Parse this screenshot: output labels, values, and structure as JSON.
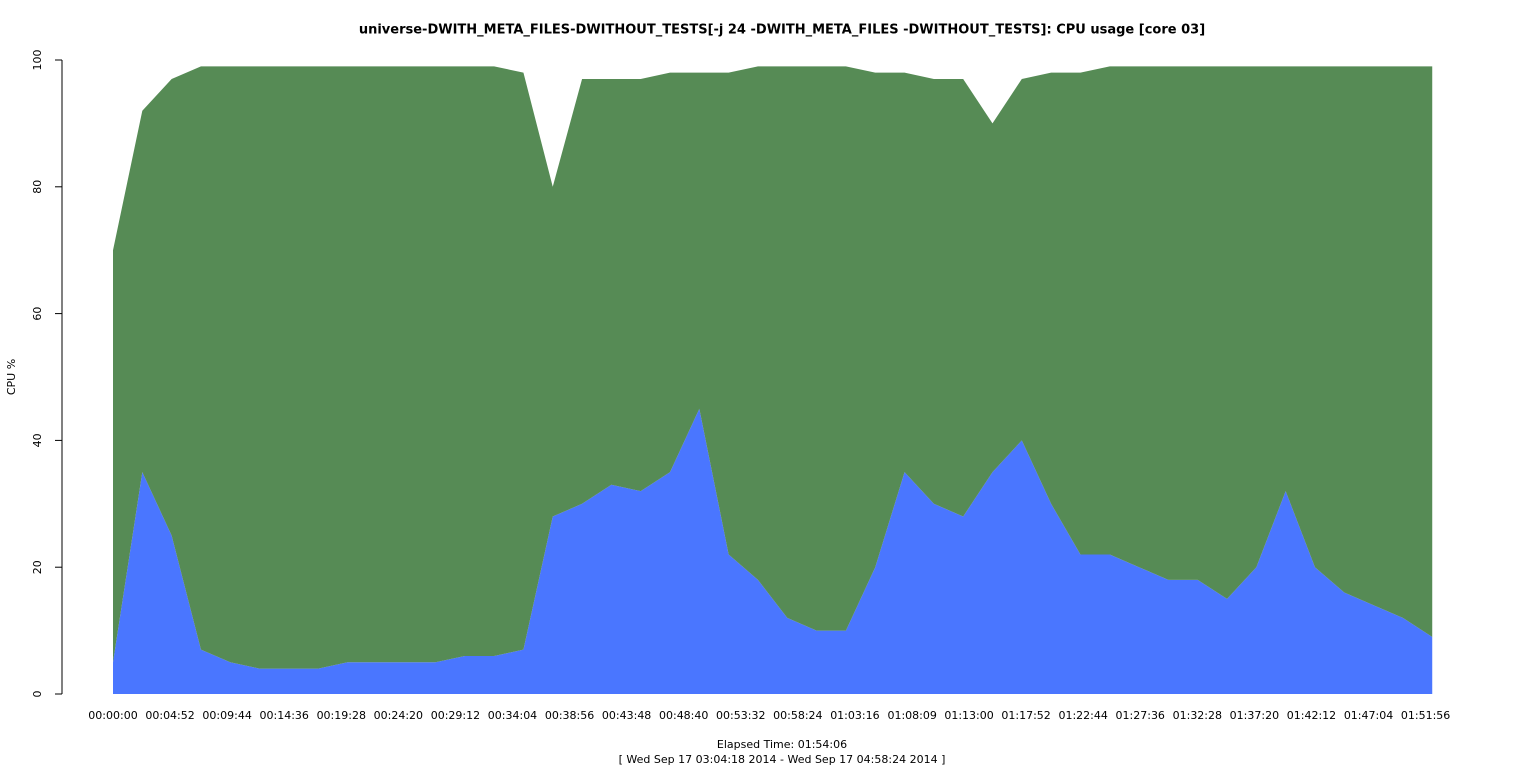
{
  "chart_data": {
    "type": "stacked-area",
    "title": "universe-DWITH_META_FILES-DWITHOUT_TESTS[-j 24 -DWITH_META_FILES -DWITHOUT_TESTS]: CPU usage [core 03]",
    "ylabel": "CPU %",
    "xlabel": "Elapsed Time: 01:54:06",
    "subtitle": "[ Wed Sep 17 03:04:18 2014 - Wed Sep 17 04:58:24 2014 ]",
    "x": [
      0,
      150,
      300,
      450,
      600,
      750,
      900,
      1050,
      1200,
      1350,
      1500,
      1650,
      1800,
      1950,
      2100,
      2250,
      2400,
      2550,
      2700,
      2850,
      3000,
      3150,
      3300,
      3450,
      3600,
      3750,
      3900,
      4050,
      4200,
      4350,
      4500,
      4650,
      4800,
      4950,
      5100,
      5250,
      5400,
      5550,
      5700,
      5850,
      6000,
      6150,
      6300,
      6450,
      6600,
      6750
    ],
    "series": [
      {
        "color": "#4a76ff",
        "values": [
          5,
          35,
          25,
          7,
          5,
          4,
          4,
          4,
          5,
          5,
          5,
          5,
          6,
          6,
          7,
          28,
          30,
          33,
          32,
          35,
          45,
          22,
          18,
          12,
          10,
          10,
          20,
          35,
          30,
          28,
          35,
          40,
          30,
          22,
          22,
          20,
          18,
          18,
          15,
          20,
          32,
          20,
          16,
          14,
          12,
          9
        ]
      },
      {
        "color": "#568b55",
        "values": [
          65,
          57,
          72,
          92,
          94,
          95,
          95,
          95,
          94,
          94,
          94,
          94,
          93,
          93,
          91,
          52,
          67,
          64,
          65,
          63,
          53,
          76,
          81,
          87,
          89,
          89,
          78,
          63,
          67,
          69,
          55,
          57,
          68,
          76,
          77,
          79,
          81,
          81,
          84,
          79,
          67,
          79,
          83,
          85,
          87,
          90
        ]
      }
    ],
    "xlim": [
      0,
      6846
    ],
    "xticks": [
      {
        "value": 0,
        "label": "00:00:00"
      },
      {
        "value": 292,
        "label": "00:04:52"
      },
      {
        "value": 584,
        "label": "00:09:44"
      },
      {
        "value": 876,
        "label": "00:14:36"
      },
      {
        "value": 1168,
        "label": "00:19:28"
      },
      {
        "value": 1460,
        "label": "00:24:20"
      },
      {
        "value": 1752,
        "label": "00:29:12"
      },
      {
        "value": 2044,
        "label": "00:34:04"
      },
      {
        "value": 2336,
        "label": "00:38:56"
      },
      {
        "value": 2628,
        "label": "00:43:48"
      },
      {
        "value": 2920,
        "label": "00:48:40"
      },
      {
        "value": 3212,
        "label": "00:53:32"
      },
      {
        "value": 3504,
        "label": "00:58:24"
      },
      {
        "value": 3796,
        "label": "01:03:16"
      },
      {
        "value": 4089,
        "label": "01:08:09"
      },
      {
        "value": 4380,
        "label": "01:13:00"
      },
      {
        "value": 4672,
        "label": "01:17:52"
      },
      {
        "value": 4964,
        "label": "01:22:44"
      },
      {
        "value": 5256,
        "label": "01:27:36"
      },
      {
        "value": 5548,
        "label": "01:32:28"
      },
      {
        "value": 5840,
        "label": "01:37:20"
      },
      {
        "value": 6132,
        "label": "01:42:12"
      },
      {
        "value": 6424,
        "label": "01:47:04"
      },
      {
        "value": 6716,
        "label": "01:51:56"
      }
    ],
    "ylim": [
      0,
      100
    ],
    "yticks": [
      0,
      20,
      40,
      60,
      80,
      100
    ]
  }
}
